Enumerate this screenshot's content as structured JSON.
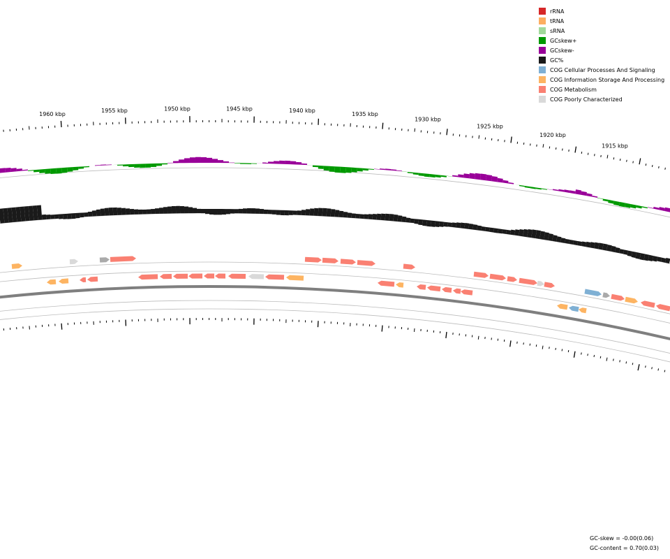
{
  "legend": [
    {
      "label": "rRNA",
      "color": "#d62728"
    },
    {
      "label": "tRNA",
      "color": "#fdae61"
    },
    {
      "label": "sRNA",
      "color": "#a1d99b"
    },
    {
      "label": "GCskew+",
      "color": "#009900"
    },
    {
      "label": "GCskew-",
      "color": "#990099"
    },
    {
      "label": "GC%",
      "color": "#1a1a1a"
    },
    {
      "label": "COG Cellular Processes And Signaling",
      "color": "#7fb0d4"
    },
    {
      "label": "COG Information Storage And Processing",
      "color": "#fdb462"
    },
    {
      "label": "COG Metabolism",
      "color": "#fa8072"
    },
    {
      "label": "COG Poorly Characterized",
      "color": "#d9d9d9"
    }
  ],
  "ruler": {
    "labels": [
      "1960 kbp",
      "1955 kbp",
      "1950 kbp",
      "1945 kbp",
      "1940 kbp",
      "1935 kbp",
      "1930 kbp",
      "1925 kbp",
      "1920 kbp",
      "1915 kbp"
    ]
  },
  "stats": {
    "gc_skew": "GC-skew = -0.00(0.06)",
    "gc_content": "GC-content = 0.70(0.03)"
  },
  "colors": {
    "gc": "#1a1a1a",
    "skew_pos": "#009900",
    "skew_neg": "#990099",
    "backbone": "#7f7f7f",
    "ring_line": "#bbbbbb"
  }
}
